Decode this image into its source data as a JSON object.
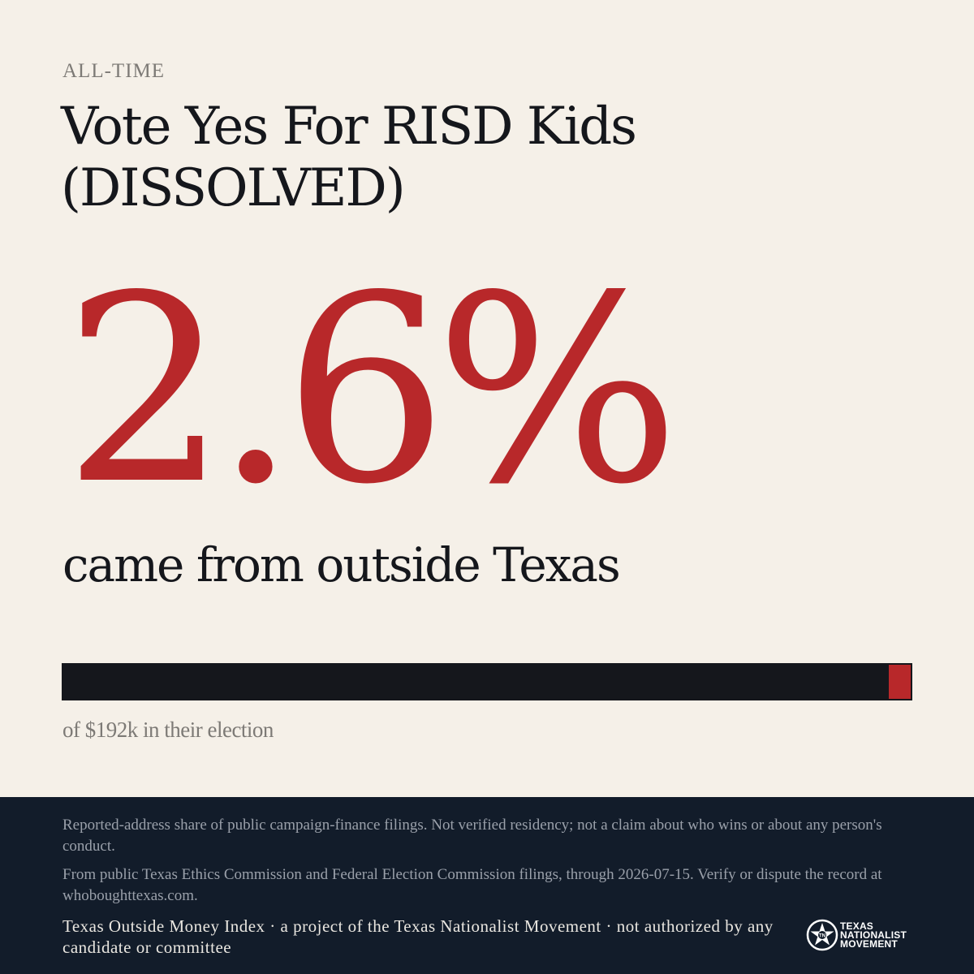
{
  "header": {
    "eyebrow": "ALL-TIME",
    "title": "Vote Yes For RISD Kids (DISSOLVED)"
  },
  "stat": {
    "percent_label": "2.6%",
    "percent_value": 2.6,
    "caption": "came from outside Texas"
  },
  "bar": {
    "outside_share_percent": 2.6,
    "colors": {
      "inside": "#15171c",
      "outside": "#b8282a"
    }
  },
  "total": {
    "text": "of $192k in their election"
  },
  "footer": {
    "disclaimer": "Reported-address share of public campaign-finance filings. Not verified residency; not a claim about who wins or about any person's conduct.",
    "source": "From public Texas Ethics Commission and Federal Election Commission filings, through 2026-07-15. Verify or dispute the record at whoboughttexas.com.",
    "credit": "Texas Outside Money Index · a project of the Texas Nationalist Movement · not authorized by any candidate or committee",
    "logo": {
      "icon": "star-in-circle-icon",
      "line1": "TEXAS",
      "line2": "NATIONALIST",
      "line3": "MOVEMENT"
    }
  },
  "colors": {
    "background": "#f5f0e8",
    "accent": "#b8282a",
    "ink": "#15171c",
    "footer_bg": "#121c2a"
  }
}
